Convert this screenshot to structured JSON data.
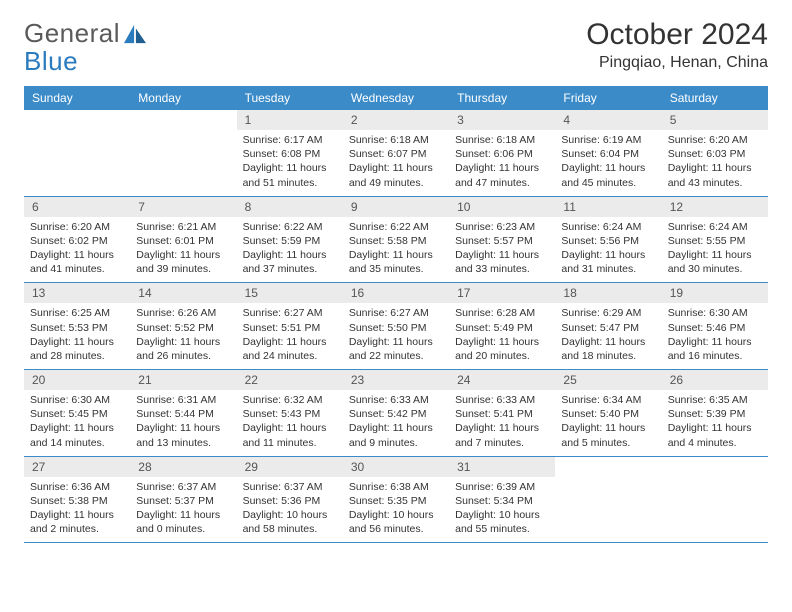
{
  "logo": {
    "textA": "General",
    "textB": "Blue"
  },
  "title": "October 2024",
  "location": "Pingqiao, Henan, China",
  "colors": {
    "header_bg": "#3b8bc9",
    "header_fg": "#ffffff",
    "daynum_bg": "#ebebeb",
    "border": "#3b8bc9",
    "text": "#333333"
  },
  "weekdays": [
    "Sunday",
    "Monday",
    "Tuesday",
    "Wednesday",
    "Thursday",
    "Friday",
    "Saturday"
  ],
  "weeks": [
    [
      null,
      null,
      {
        "n": "1",
        "sr": "6:17 AM",
        "ss": "6:08 PM",
        "dl": "11 hours and 51 minutes."
      },
      {
        "n": "2",
        "sr": "6:18 AM",
        "ss": "6:07 PM",
        "dl": "11 hours and 49 minutes."
      },
      {
        "n": "3",
        "sr": "6:18 AM",
        "ss": "6:06 PM",
        "dl": "11 hours and 47 minutes."
      },
      {
        "n": "4",
        "sr": "6:19 AM",
        "ss": "6:04 PM",
        "dl": "11 hours and 45 minutes."
      },
      {
        "n": "5",
        "sr": "6:20 AM",
        "ss": "6:03 PM",
        "dl": "11 hours and 43 minutes."
      }
    ],
    [
      {
        "n": "6",
        "sr": "6:20 AM",
        "ss": "6:02 PM",
        "dl": "11 hours and 41 minutes."
      },
      {
        "n": "7",
        "sr": "6:21 AM",
        "ss": "6:01 PM",
        "dl": "11 hours and 39 minutes."
      },
      {
        "n": "8",
        "sr": "6:22 AM",
        "ss": "5:59 PM",
        "dl": "11 hours and 37 minutes."
      },
      {
        "n": "9",
        "sr": "6:22 AM",
        "ss": "5:58 PM",
        "dl": "11 hours and 35 minutes."
      },
      {
        "n": "10",
        "sr": "6:23 AM",
        "ss": "5:57 PM",
        "dl": "11 hours and 33 minutes."
      },
      {
        "n": "11",
        "sr": "6:24 AM",
        "ss": "5:56 PM",
        "dl": "11 hours and 31 minutes."
      },
      {
        "n": "12",
        "sr": "6:24 AM",
        "ss": "5:55 PM",
        "dl": "11 hours and 30 minutes."
      }
    ],
    [
      {
        "n": "13",
        "sr": "6:25 AM",
        "ss": "5:53 PM",
        "dl": "11 hours and 28 minutes."
      },
      {
        "n": "14",
        "sr": "6:26 AM",
        "ss": "5:52 PM",
        "dl": "11 hours and 26 minutes."
      },
      {
        "n": "15",
        "sr": "6:27 AM",
        "ss": "5:51 PM",
        "dl": "11 hours and 24 minutes."
      },
      {
        "n": "16",
        "sr": "6:27 AM",
        "ss": "5:50 PM",
        "dl": "11 hours and 22 minutes."
      },
      {
        "n": "17",
        "sr": "6:28 AM",
        "ss": "5:49 PM",
        "dl": "11 hours and 20 minutes."
      },
      {
        "n": "18",
        "sr": "6:29 AM",
        "ss": "5:47 PM",
        "dl": "11 hours and 18 minutes."
      },
      {
        "n": "19",
        "sr": "6:30 AM",
        "ss": "5:46 PM",
        "dl": "11 hours and 16 minutes."
      }
    ],
    [
      {
        "n": "20",
        "sr": "6:30 AM",
        "ss": "5:45 PM",
        "dl": "11 hours and 14 minutes."
      },
      {
        "n": "21",
        "sr": "6:31 AM",
        "ss": "5:44 PM",
        "dl": "11 hours and 13 minutes."
      },
      {
        "n": "22",
        "sr": "6:32 AM",
        "ss": "5:43 PM",
        "dl": "11 hours and 11 minutes."
      },
      {
        "n": "23",
        "sr": "6:33 AM",
        "ss": "5:42 PM",
        "dl": "11 hours and 9 minutes."
      },
      {
        "n": "24",
        "sr": "6:33 AM",
        "ss": "5:41 PM",
        "dl": "11 hours and 7 minutes."
      },
      {
        "n": "25",
        "sr": "6:34 AM",
        "ss": "5:40 PM",
        "dl": "11 hours and 5 minutes."
      },
      {
        "n": "26",
        "sr": "6:35 AM",
        "ss": "5:39 PM",
        "dl": "11 hours and 4 minutes."
      }
    ],
    [
      {
        "n": "27",
        "sr": "6:36 AM",
        "ss": "5:38 PM",
        "dl": "11 hours and 2 minutes."
      },
      {
        "n": "28",
        "sr": "6:37 AM",
        "ss": "5:37 PM",
        "dl": "11 hours and 0 minutes."
      },
      {
        "n": "29",
        "sr": "6:37 AM",
        "ss": "5:36 PM",
        "dl": "10 hours and 58 minutes."
      },
      {
        "n": "30",
        "sr": "6:38 AM",
        "ss": "5:35 PM",
        "dl": "10 hours and 56 minutes."
      },
      {
        "n": "31",
        "sr": "6:39 AM",
        "ss": "5:34 PM",
        "dl": "10 hours and 55 minutes."
      },
      null,
      null
    ]
  ],
  "labels": {
    "sunrise": "Sunrise: ",
    "sunset": "Sunset: ",
    "daylight": "Daylight: "
  }
}
